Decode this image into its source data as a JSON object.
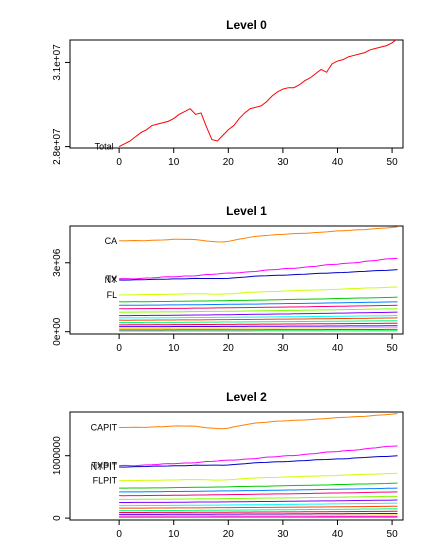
{
  "chart_data": [
    {
      "type": "line",
      "title": "Level 0",
      "xlabel": "",
      "ylabel": "",
      "xlim": [
        -9,
        52
      ],
      "ylim": [
        27950000,
        31800000
      ],
      "x_ticks": [
        0,
        10,
        20,
        30,
        40,
        50
      ],
      "y_ticks": [
        28000000,
        31000000
      ],
      "y_tick_labels": [
        "2.8e+07",
        "3.1e+07"
      ],
      "series": [
        {
          "label": "Total",
          "color": "#ff0000",
          "label_x": -1,
          "values": [
            28000000,
            28100000,
            28200000,
            28350000,
            28500000,
            28600000,
            28750000,
            28800000,
            28850000,
            28900000,
            29000000,
            29150000,
            29250000,
            29350000,
            29150000,
            29200000,
            28700000,
            28250000,
            28200000,
            28400000,
            28600000,
            28750000,
            29000000,
            29200000,
            29350000,
            29400000,
            29450000,
            29600000,
            29800000,
            29950000,
            30050000,
            30100000,
            30100000,
            30200000,
            30350000,
            30450000,
            30600000,
            30750000,
            30650000,
            30950000,
            31050000,
            31100000,
            31200000,
            31250000,
            31300000,
            31350000,
            31450000,
            31500000,
            31550000,
            31600000,
            31700000,
            31850000
          ]
        }
      ]
    },
    {
      "type": "line",
      "title": "Level 1",
      "xlabel": "",
      "ylabel": "",
      "xlim": [
        -9,
        52
      ],
      "ylim": [
        -100000,
        4600000
      ],
      "x_ticks": [
        0,
        10,
        20,
        30,
        40,
        50
      ],
      "y_ticks": [
        0,
        3000000
      ],
      "y_tick_labels": [
        "0e+00",
        "3e+06"
      ],
      "series": [
        {
          "label": "CA",
          "color": "#ff8000",
          "start": 3950000,
          "end": 4550000,
          "dip": 0.05
        },
        {
          "label": "TX",
          "color": "#ff00ff",
          "start": 2300000,
          "end": 3200000,
          "dip": 0.0
        },
        {
          "label": "NY",
          "color": "#0000cc",
          "start": 2250000,
          "end": 2700000,
          "dip": 0.02
        },
        {
          "label": "FL",
          "color": "#ccff00",
          "start": 1600000,
          "end": 1950000,
          "dip": 0.03
        },
        {
          "label": "",
          "color": "#00cc00",
          "start": 1300000,
          "end": 1500000,
          "dip": 0.0
        },
        {
          "label": "",
          "color": "#0080ff",
          "start": 1150000,
          "end": 1300000,
          "dip": 0.0
        },
        {
          "label": "",
          "color": "#ff0080",
          "start": 1000000,
          "end": 1150000,
          "dip": 0.0
        },
        {
          "label": "",
          "color": "#80ff00",
          "start": 850000,
          "end": 1000000,
          "dip": 0.0
        },
        {
          "label": "",
          "color": "#8000ff",
          "start": 700000,
          "end": 850000,
          "dip": 0.0
        },
        {
          "label": "",
          "color": "#00ffff",
          "start": 600000,
          "end": 700000,
          "dip": 0.0
        },
        {
          "label": "",
          "color": "#ff4000",
          "start": 500000,
          "end": 600000,
          "dip": 0.0
        },
        {
          "label": "",
          "color": "#00ff80",
          "start": 400000,
          "end": 480000,
          "dip": 0.0
        },
        {
          "label": "",
          "color": "#ff0040",
          "start": 300000,
          "end": 370000,
          "dip": 0.0
        },
        {
          "label": "",
          "color": "#4000ff",
          "start": 220000,
          "end": 260000,
          "dip": 0.0
        },
        {
          "label": "",
          "color": "#ffcc00",
          "start": 150000,
          "end": 180000,
          "dip": 0.0
        },
        {
          "label": "",
          "color": "#ff00cc",
          "start": 80000,
          "end": 100000,
          "dip": 0.0
        },
        {
          "label": "",
          "color": "#00ff40",
          "start": 30000,
          "end": 40000,
          "dip": 0.0
        }
      ]
    },
    {
      "type": "line",
      "title": "Level 2",
      "xlabel": "",
      "ylabel": "",
      "xlim": [
        -9,
        52
      ],
      "ylim": [
        -30000,
        1700000
      ],
      "x_ticks": [
        0,
        10,
        20,
        30,
        40,
        50
      ],
      "y_ticks": [
        0,
        1000000
      ],
      "y_tick_labels": [
        "0",
        "1000000"
      ],
      "series": [
        {
          "label": "CAPIT",
          "color": "#ff8000",
          "start": 1450000,
          "end": 1670000,
          "dip": 0.05
        },
        {
          "label": "TXPIT",
          "color": "#ff00ff",
          "start": 840000,
          "end": 1160000,
          "dip": 0.0
        },
        {
          "label": "NYPIT",
          "color": "#0000cc",
          "start": 820000,
          "end": 1000000,
          "dip": 0.02
        },
        {
          "label": "FLPIT",
          "color": "#ccff00",
          "start": 600000,
          "end": 720000,
          "dip": 0.03
        },
        {
          "label": "",
          "color": "#00cc00",
          "start": 480000,
          "end": 560000,
          "dip": 0.0
        },
        {
          "label": "",
          "color": "#0080ff",
          "start": 420000,
          "end": 480000,
          "dip": 0.0
        },
        {
          "label": "",
          "color": "#ff0080",
          "start": 360000,
          "end": 420000,
          "dip": 0.0
        },
        {
          "label": "",
          "color": "#80ff00",
          "start": 300000,
          "end": 350000,
          "dip": 0.0
        },
        {
          "label": "",
          "color": "#8000ff",
          "start": 250000,
          "end": 290000,
          "dip": 0.0
        },
        {
          "label": "",
          "color": "#00ffff",
          "start": 200000,
          "end": 240000,
          "dip": 0.0
        },
        {
          "label": "",
          "color": "#ff4000",
          "start": 160000,
          "end": 190000,
          "dip": 0.0
        },
        {
          "label": "",
          "color": "#00ff80",
          "start": 120000,
          "end": 150000,
          "dip": 0.0
        },
        {
          "label": "",
          "color": "#ff0040",
          "start": 90000,
          "end": 110000,
          "dip": 0.0
        },
        {
          "label": "",
          "color": "#4000ff",
          "start": 60000,
          "end": 75000,
          "dip": 0.0
        },
        {
          "label": "",
          "color": "#ffcc00",
          "start": 40000,
          "end": 50000,
          "dip": 0.0
        },
        {
          "label": "",
          "color": "#ff00cc",
          "start": 20000,
          "end": 25000,
          "dip": 0.0
        },
        {
          "label": "",
          "color": "#00ff40",
          "start": 8000,
          "end": 10000,
          "dip": 0.0
        }
      ]
    }
  ]
}
